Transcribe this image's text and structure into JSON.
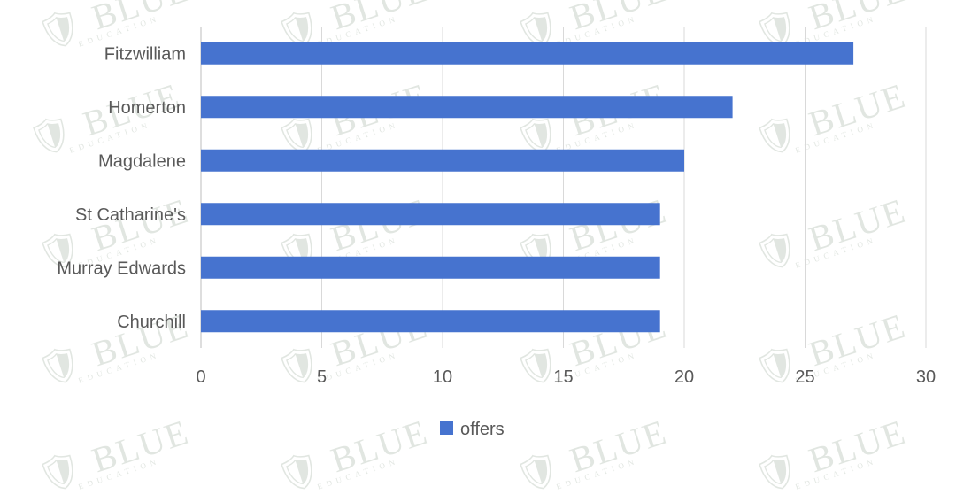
{
  "chart_data": {
    "type": "bar",
    "orientation": "horizontal",
    "categories": [
      "Fitzwilliam",
      "Homerton",
      "Magdalene",
      "St Catharine's",
      "Murray Edwards",
      "Churchill"
    ],
    "series": [
      {
        "name": "offers",
        "values": [
          27,
          22,
          20,
          19,
          19,
          19
        ],
        "color": "#4673cf"
      }
    ],
    "xlim": [
      0,
      30
    ],
    "xticks": [
      "0",
      "5",
      "10",
      "15",
      "20",
      "25",
      "30"
    ],
    "grid": true,
    "legend": "bottom"
  },
  "watermark": {
    "title": "BLUE",
    "subtitle": "EDUCATION"
  }
}
